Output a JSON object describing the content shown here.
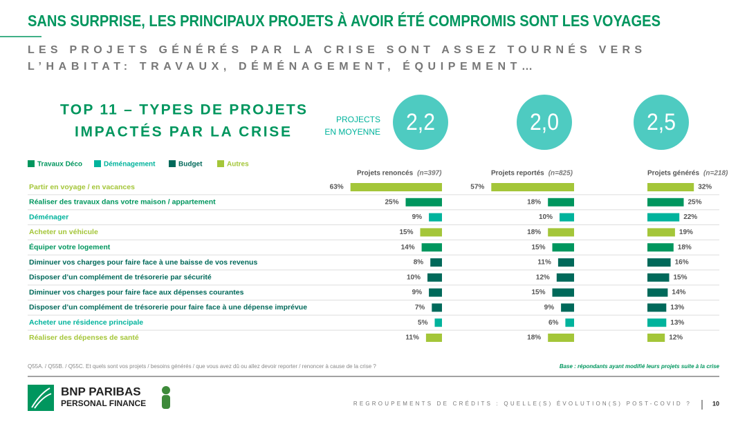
{
  "header": {
    "title": "SANS SURPRISE, LES PRINCIPAUX PROJETS À AVOIR ÉTÉ COMPROMIS SONT LES VOYAGES",
    "subtitle": [
      "LES PROJETS GÉNÉRÉS PAR LA CRISE SONT ASSEZ TOURNÉS VERS",
      "L’HABITAT: TRAVAUX, DÉMÉNAGEMENT, ÉQUIPEMENT…"
    ]
  },
  "top_title": [
    "TOP 11 – TYPES DE PROJETS",
    "IMPACTÉS PAR LA CRISE"
  ],
  "average_label": [
    "PROJECTS",
    "EN MOYENNE"
  ],
  "legend": [
    {
      "name": "Travaux Déco",
      "color": "#00965e"
    },
    {
      "name": "Déménagement",
      "color": "#00b39c"
    },
    {
      "name": "Budget",
      "color": "#00695a"
    },
    {
      "name": "Autres",
      "color": "#a4c639"
    }
  ],
  "categories": [
    "Partir en voyage / en vacances",
    "Réaliser des travaux dans votre maison / appartement",
    "Déménager",
    "Acheter un véhicule",
    "Équiper votre logement",
    "Diminuer vos charges pour faire face à une baisse de vos revenus",
    "Disposer d’un complément de trésorerie par sécurité",
    "Diminuer vos charges pour faire face aux dépenses courantes",
    "Disposer d’un complément de trésorerie pour faire face à une dépense imprévue",
    "Acheter une résidence principale",
    "Réaliser des dépenses de santé"
  ],
  "row_colors": [
    "#a4c639",
    "#00965e",
    "#00b39c",
    "#a4c639",
    "#00965e",
    "#00695a",
    "#00695a",
    "#00695a",
    "#00695a",
    "#00b39c",
    "#a4c639"
  ],
  "chart_data": [
    {
      "type": "bar",
      "title": "Projets renoncés",
      "note": "(n=397)",
      "average": "2,2",
      "bar_anchor": "right",
      "xlim": [
        0,
        100
      ],
      "values": [
        63,
        25,
        9,
        15,
        14,
        8,
        10,
        9,
        7,
        5,
        11
      ],
      "value_labels": [
        "63%",
        "25%",
        "9%",
        "15%",
        "14%",
        "8%",
        "10%",
        "9%",
        "7%",
        "5%",
        "11%"
      ]
    },
    {
      "type": "bar",
      "title": "Projets reportés",
      "note": "(n=825)",
      "average": "2,0",
      "bar_anchor": "right",
      "xlim": [
        0,
        100
      ],
      "values": [
        57,
        18,
        10,
        18,
        15,
        11,
        12,
        15,
        9,
        6,
        18
      ],
      "value_labels": [
        "57%",
        "18%",
        "10%",
        "18%",
        "15%",
        "11%",
        "12%",
        "15%",
        "9%",
        "6%",
        "18%"
      ]
    },
    {
      "type": "bar",
      "title": "Projets générés",
      "note": "(n=218)",
      "average": "2,5",
      "bar_anchor": "left",
      "xlim": [
        0,
        100
      ],
      "values": [
        32,
        25,
        22,
        19,
        18,
        16,
        15,
        14,
        13,
        13,
        12
      ],
      "value_labels": [
        "32%",
        "25%",
        "22%",
        "19%",
        "18%",
        "16%",
        "15%",
        "14%",
        "13%",
        "13%",
        "12%"
      ]
    }
  ],
  "footer": {
    "question": "Q55A. / Q55B. / Q55C. Et quels sont vos projets / besoins générés / que vous avez dû ou allez devoir reporter / renoncer à cause de la crise ?",
    "base": "Base : répondants ayant modifié leurs projets suite à la crise",
    "brand": [
      "BNP PARIBAS",
      "PERSONAL FINANCE"
    ],
    "topic": "REGROUPEMENTS DE CRÉDITS : QUELLE(S) ÉVOLUTION(S) POST-COVID ?",
    "page": "10"
  }
}
